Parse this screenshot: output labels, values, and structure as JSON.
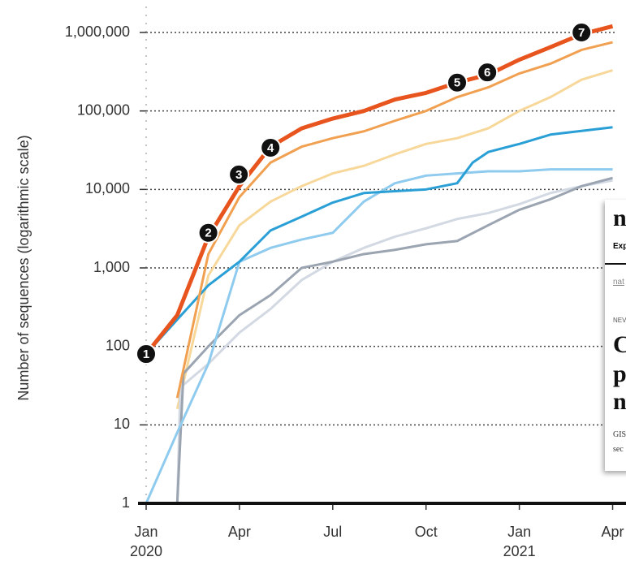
{
  "chart_data": {
    "type": "line",
    "y_label": "Number of sequences (logarithmic scale)",
    "log_scale": true,
    "grid": true,
    "xlim": [
      0,
      15.43
    ],
    "xticks": [
      {
        "value": 0,
        "label": "Jan"
      },
      {
        "value": 3,
        "label": "Apr"
      },
      {
        "value": 6,
        "label": "Jul"
      },
      {
        "value": 9,
        "label": "Oct"
      },
      {
        "value": 12,
        "label": "Jan"
      },
      {
        "value": 15,
        "label": "Apr"
      }
    ],
    "x_year_labels": [
      {
        "value": 0,
        "label": "2020"
      },
      {
        "value": 12,
        "label": "2021"
      }
    ],
    "ylim": [
      1,
      1000000
    ],
    "yticks": [
      1,
      10,
      100,
      {
        "value": 1000,
        "label": "1,000"
      },
      {
        "value": 10000,
        "label": "10,000"
      },
      {
        "value": 100000,
        "label": "100,000"
      },
      {
        "value": 1000000,
        "label": "1,000,000"
      }
    ],
    "series": [
      {
        "color": "#f7d89a",
        "x": [
          1,
          2,
          3,
          4,
          5,
          6,
          7,
          8,
          9,
          10,
          11,
          12,
          13,
          14,
          15
        ],
        "values": [
          16,
          800,
          3500,
          7000,
          11000,
          16000,
          20000,
          28000,
          38000,
          45000,
          60000,
          100000,
          150000,
          250000,
          330000
        ]
      },
      {
        "color": "#d3d9e2",
        "x": [
          1,
          1.1,
          2,
          3,
          4,
          5,
          6,
          7,
          8,
          9,
          10,
          11,
          12,
          13,
          14,
          15
        ],
        "values": [
          1,
          30,
          60,
          150,
          300,
          700,
          1200,
          1800,
          2500,
          3200,
          4200,
          5000,
          6500,
          9000,
          11000,
          13000
        ]
      },
      {
        "color": "#9ba4b1",
        "x": [
          1,
          1.2,
          2,
          3,
          4,
          5,
          6,
          7,
          8,
          9,
          10,
          11,
          12,
          13,
          14,
          15
        ],
        "values": [
          1,
          45,
          100,
          250,
          450,
          1000,
          1200,
          1500,
          1700,
          2000,
          2200,
          3500,
          5500,
          7500,
          11000,
          14000
        ]
      },
      {
        "color": "#8fcbee",
        "x": [
          0,
          1,
          2,
          3,
          4,
          5,
          6,
          7,
          8,
          9,
          10,
          11,
          12,
          13,
          15
        ],
        "values": [
          1,
          8,
          60,
          1200,
          1800,
          2300,
          2800,
          7000,
          12000,
          15000,
          16000,
          17000,
          17000,
          18000,
          18000
        ]
      },
      {
        "color": "#2a9fd6",
        "x": [
          0,
          1,
          2,
          3,
          4,
          5,
          6,
          7,
          8,
          9,
          10,
          10.5,
          11,
          12,
          13,
          15
        ],
        "values": [
          80,
          220,
          600,
          1200,
          3000,
          4500,
          6800,
          9000,
          9500,
          10000,
          12000,
          22000,
          30000,
          38000,
          50000,
          62000
        ]
      },
      {
        "color": "#f0a050",
        "x": [
          1,
          2,
          3,
          4,
          5,
          6,
          7,
          8,
          9,
          10,
          11,
          12,
          13,
          14,
          15
        ],
        "values": [
          22,
          1500,
          8000,
          22000,
          35000,
          45000,
          55000,
          75000,
          100000,
          150000,
          200000,
          300000,
          400000,
          600000,
          750000
        ]
      },
      {
        "color": "#e8541e",
        "x": [
          0,
          1,
          2,
          3,
          4,
          5,
          6,
          7,
          8,
          9,
          10,
          11,
          12,
          13,
          14,
          15
        ],
        "values": [
          80,
          250,
          2500,
          11000,
          35000,
          60000,
          80000,
          100000,
          140000,
          170000,
          230000,
          290000,
          450000,
          650000,
          950000,
          1200000
        ]
      }
    ],
    "annotations": [
      {
        "label": "1",
        "x": 0,
        "y": 80
      },
      {
        "label": "2",
        "x": 2,
        "y": 2800
      },
      {
        "label": "3",
        "x": 2.98,
        "y": 15500
      },
      {
        "label": "4",
        "x": 4,
        "y": 34000
      },
      {
        "label": "5",
        "x": 10,
        "y": 230000
      },
      {
        "label": "6",
        "x": 10.97,
        "y": 310000
      },
      {
        "label": "7",
        "x": 14,
        "y": 1000000
      }
    ]
  },
  "overlay": {
    "masthead": "n",
    "nav": "Exp",
    "breadcrumb": "nat",
    "kicker": "NEV",
    "headline": [
      "C",
      "p",
      "n"
    ],
    "standfirst": [
      "GIS",
      "sec"
    ]
  }
}
